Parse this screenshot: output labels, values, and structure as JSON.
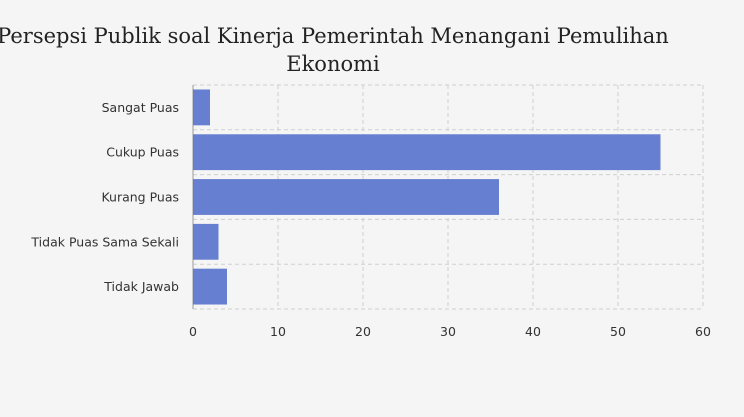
{
  "chart_data": {
    "type": "bar",
    "orientation": "horizontal",
    "title_line1": "Persepsi Publik soal Kinerja Pemerintah Menangani Pemulihan",
    "title_line2": "Ekonomi",
    "categories": [
      "Sangat Puas",
      "Cukup Puas",
      "Kurang Puas",
      "Tidak Puas Sama Sekali",
      "Tidak Jawab"
    ],
    "values": [
      2,
      55,
      36,
      3,
      4
    ],
    "xlabel": "",
    "ylabel": "",
    "xlim": [
      0,
      60
    ],
    "xticks": [
      0,
      10,
      20,
      30,
      40,
      50,
      60
    ],
    "grid": true,
    "bar_color": "#5a74cc"
  }
}
